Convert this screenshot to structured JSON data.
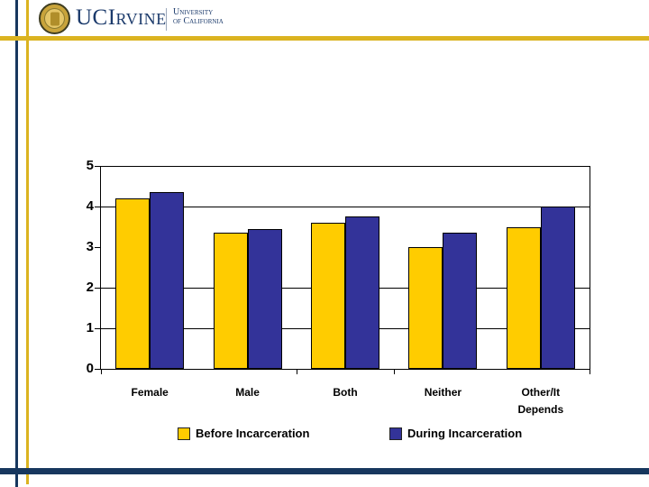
{
  "logo": {
    "wordmark": "UCIrvine",
    "university_line1": "University",
    "university_line2": "of California",
    "navy": "#1B3A6B",
    "gold": "#DBB320"
  },
  "frame": {
    "navy": "#17375E",
    "gold": "#DBB320"
  },
  "chart_data": {
    "type": "bar",
    "title": "",
    "xlabel": "",
    "ylabel": "",
    "categories": [
      "Female",
      "Male",
      "Both",
      "Neither",
      "Other/It\nDepends"
    ],
    "series": [
      {
        "name": "Before Incarceration",
        "color": "#FFCC00",
        "values": [
          4.2,
          3.35,
          3.6,
          3.0,
          3.5
        ]
      },
      {
        "name": "During Incarceration",
        "color": "#333399",
        "values": [
          4.35,
          3.45,
          3.75,
          3.35,
          4.0
        ]
      }
    ],
    "ylim": [
      0,
      5
    ],
    "yticks": [
      0,
      1,
      2,
      3,
      4,
      5
    ],
    "gridline_values": [
      1,
      2,
      4,
      5
    ],
    "x_tick_boundaries": [
      0,
      2,
      3,
      5
    ],
    "grid": "horizontal",
    "legend_position": "bottom"
  }
}
